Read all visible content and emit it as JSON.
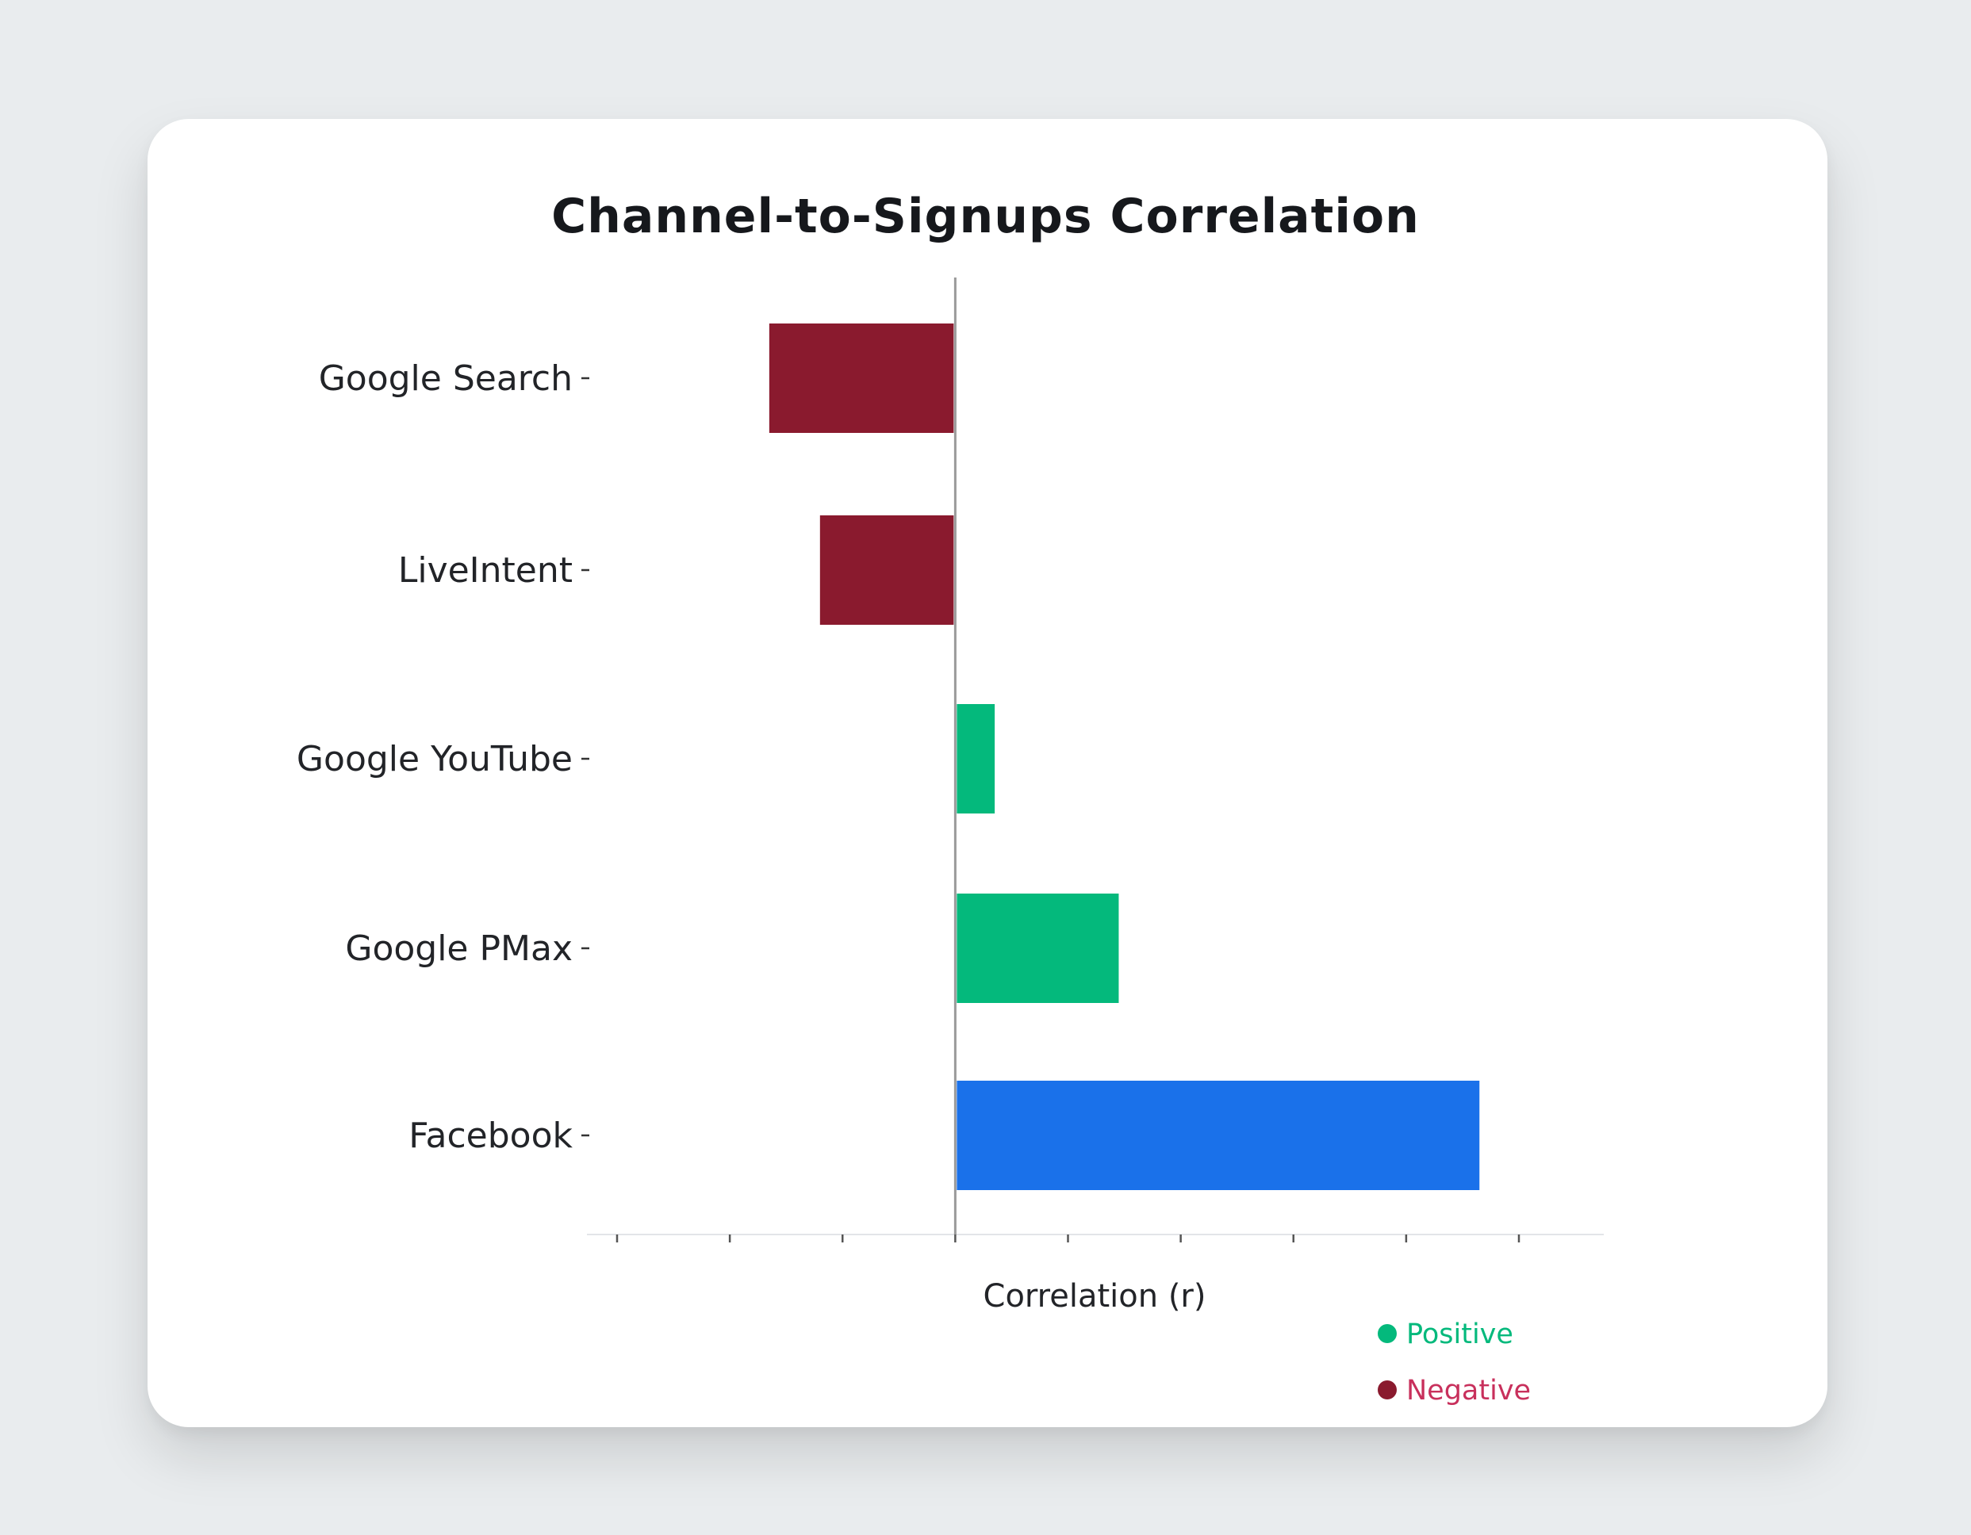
{
  "chart_data": {
    "type": "bar",
    "orientation": "horizontal",
    "title": "Channel-to-Signups Correlation",
    "xlabel": "Correlation (r)",
    "ylabel": "",
    "xlim": [
      -0.6,
      1.0
    ],
    "x_ticks": [
      -0.6,
      -0.4,
      -0.2,
      0.0,
      0.2,
      0.4,
      0.6,
      0.8,
      1.0
    ],
    "tick_labels_shown": false,
    "grid": false,
    "categories": [
      "Google Search",
      "LiveIntent",
      "Google YouTube",
      "Google PMax",
      "Facebook"
    ],
    "values": [
      -0.33,
      -0.24,
      0.07,
      0.29,
      0.93
    ],
    "bar_colors": [
      "#8a1a2e",
      "#8a1a2e",
      "#04b97c",
      "#04b97c",
      "#1a71ea"
    ],
    "legend": {
      "placement": "bottom-right",
      "entries": [
        {
          "label": "Positive",
          "color": "#04b97c"
        },
        {
          "label": "Negative",
          "color": "#8a1a2e",
          "text_color": "#c8305c"
        }
      ]
    }
  }
}
